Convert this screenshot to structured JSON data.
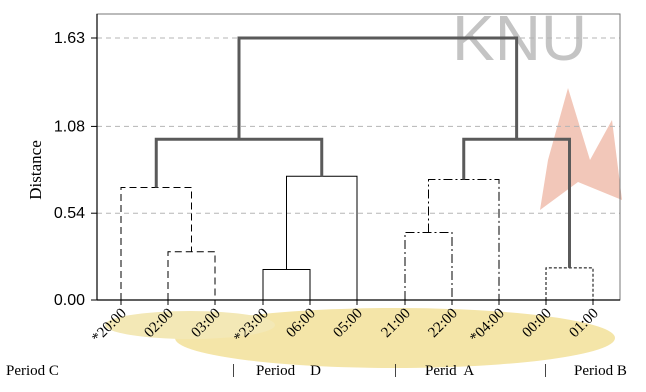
{
  "watermark": {
    "text": "KNU"
  },
  "periods": [
    {
      "label": "Period C"
    },
    {
      "label": "Period    D"
    },
    {
      "label": "Perid  A"
    },
    {
      "label": "Period B"
    }
  ],
  "separator": "|",
  "chart_data": {
    "type": "dendrogram",
    "ylabel": "Distance",
    "xlabel": "",
    "title": "",
    "ylim": [
      0,
      1.85
    ],
    "yticks": [
      0.0,
      0.54,
      1.08,
      1.63
    ],
    "ytick_labels": [
      "0.00",
      "0.54",
      "1.08",
      "1.63"
    ],
    "grid": true,
    "leaves": [
      "*20:00",
      "02:00",
      "03:00",
      "*23:00",
      "06:00",
      "05:00",
      "21:00",
      "22:00",
      "*04:00",
      "00:00",
      "01:00"
    ],
    "merges": [
      {
        "left": "02:00",
        "right": "03:00",
        "height": 0.3
      },
      {
        "left": "*20:00",
        "right": "02:00+03:00",
        "height": 0.7
      },
      {
        "left": "*23:00",
        "right": "06:00",
        "height": 0.19
      },
      {
        "left": "*23:00+06:00",
        "right": "05:00",
        "height": 0.77
      },
      {
        "left": "Period C",
        "right": "Period D",
        "height": 1.0
      },
      {
        "left": "21:00",
        "right": "22:00",
        "height": 0.42
      },
      {
        "left": "21:00+22:00",
        "right": "*04:00",
        "height": 0.75
      },
      {
        "left": "00:00",
        "right": "01:00",
        "height": 0.2
      },
      {
        "left": "Period A",
        "right": "Period B",
        "height": 1.0
      },
      {
        "left": "C+D",
        "right": "A+B",
        "height": 1.63
      }
    ]
  }
}
